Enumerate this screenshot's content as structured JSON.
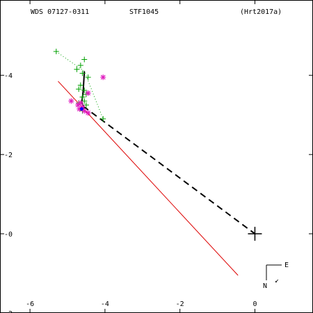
{
  "header": {
    "left": "WDS 07127-0311",
    "center": "STF1045",
    "right": "(Hrt2017a)"
  },
  "compass": {
    "east": "E",
    "north": "N",
    "arrow": "↙"
  },
  "chart_data": {
    "type": "scatter",
    "title": "STF1045",
    "xlim": [
      -6.8,
      1.55
    ],
    "ylim": [
      -2.0,
      5.9
    ],
    "x_ticks": [
      -6,
      -4,
      -2,
      0
    ],
    "y_ticks": [
      -2,
      0,
      2,
      4
    ],
    "x_tick_labels": [
      "-6",
      "-4",
      "-2",
      "0"
    ],
    "y_tick_labels": [
      "-2",
      "-0",
      "-2",
      "-4"
    ],
    "grid": false,
    "primary": {
      "x": 0,
      "y": 0,
      "color": "#000000"
    },
    "series": [
      {
        "marker": "plus",
        "color": "#00a000",
        "points": [
          [
            -5.3,
            4.6
          ],
          [
            -4.55,
            4.4
          ],
          [
            -4.65,
            4.25
          ],
          [
            -4.75,
            4.15
          ],
          [
            -4.6,
            4.05
          ],
          [
            -4.45,
            3.95
          ],
          [
            -4.65,
            3.75
          ],
          [
            -4.7,
            3.65
          ],
          [
            -4.55,
            3.62
          ],
          [
            -4.5,
            3.52
          ],
          [
            -4.6,
            3.45
          ],
          [
            -4.55,
            3.35
          ],
          [
            -4.7,
            3.3
          ],
          [
            -4.5,
            3.25
          ],
          [
            -4.6,
            3.1
          ],
          [
            -4.05,
            2.9
          ]
        ]
      },
      {
        "marker": "star",
        "color": "#e020c0",
        "points": [
          [
            -4.05,
            3.95
          ],
          [
            -4.45,
            3.55
          ],
          [
            -4.9,
            3.35
          ],
          [
            -4.65,
            3.3
          ],
          [
            -4.72,
            3.25
          ],
          [
            -4.6,
            3.2
          ],
          [
            -4.68,
            3.15
          ],
          [
            -4.55,
            3.1
          ],
          [
            -4.45,
            3.05
          ]
        ]
      },
      {
        "marker": "dot",
        "color": "#0000ff",
        "points": [
          [
            -4.62,
            3.15
          ]
        ]
      },
      {
        "name": "green path",
        "type": "dotted-line",
        "color": "#00a000",
        "points": [
          [
            -5.3,
            4.6
          ],
          [
            -4.55,
            4.1
          ],
          [
            -4.05,
            2.9
          ]
        ]
      },
      {
        "name": "orbit arc",
        "type": "line",
        "color": "#000000",
        "points": [
          [
            -4.55,
            4.1
          ],
          [
            -4.58,
            3.6
          ],
          [
            -4.62,
            3.3
          ],
          [
            -4.55,
            3.15
          ]
        ]
      },
      {
        "name": "node line",
        "type": "line",
        "color": "#dd0000",
        "points": [
          [
            -5.25,
            3.85
          ],
          [
            -0.45,
            -1.05
          ]
        ]
      },
      {
        "name": "periastron",
        "type": "dashed-line",
        "color": "#000000",
        "points": [
          [
            -4.58,
            3.22
          ],
          [
            0,
            0
          ]
        ]
      }
    ]
  }
}
